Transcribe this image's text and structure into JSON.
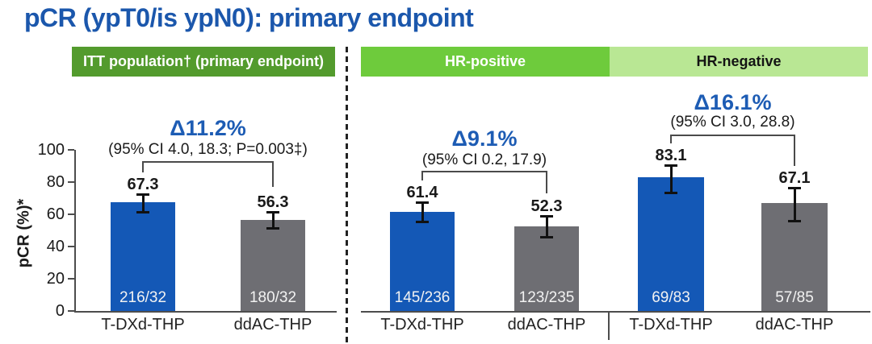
{
  "title": "pCR (ypT0/is ypN0): primary endpoint",
  "colors": {
    "title_blue": "#1b57ac",
    "delta_blue": "#1d5cb4",
    "bar_blue": "#1458b6",
    "bar_gray": "#6e6e73",
    "band_itt": "#539b2d",
    "band_hrpos": "#6ecb3c",
    "band_hrneg": "#b9e794",
    "axis": "#4d4d4d",
    "ink": "#1a1a1a"
  },
  "bands": [
    {
      "id": "itt",
      "label": "ITT population† (primary endpoint)"
    },
    {
      "id": "hr-positive",
      "label": "HR-positive"
    },
    {
      "id": "hr-negative",
      "label": "HR-negative"
    }
  ],
  "axis": {
    "ylabel": "pCR (%)*",
    "ticks": [
      0,
      20,
      40,
      60,
      80,
      100
    ],
    "ylim": [
      0,
      100
    ],
    "grid": false
  },
  "chart_data": [
    {
      "type": "bar",
      "group": "ITT population (primary endpoint)",
      "delta": "Δ11.2%",
      "ci": "(95% CI 4.0, 18.3; P=0.003‡)",
      "categories": [
        "T-DXd-THP",
        "ddAC-THP"
      ],
      "bars": [
        {
          "category": "T-DXd-THP",
          "value": 67.3,
          "value_label": "67.3",
          "n_label": "216/32",
          "ci_est": [
            61.1,
            72.3
          ],
          "color": "blue"
        },
        {
          "category": "ddAC-THP",
          "value": 56.3,
          "value_label": "56.3",
          "n_label": "180/32",
          "ci_est": [
            50.8,
            61.6
          ],
          "color": "gray"
        }
      ]
    },
    {
      "type": "bar",
      "group": "HR-positive",
      "delta": "Δ9.1%",
      "ci": "(95% CI 0.2, 17.9)",
      "categories": [
        "T-DXd-THP",
        "ddAC-THP"
      ],
      "bars": [
        {
          "category": "T-DXd-THP",
          "value": 61.4,
          "value_label": "61.4",
          "n_label": "145/236",
          "ci_est": [
            54.8,
            67.6
          ],
          "color": "blue"
        },
        {
          "category": "ddAC-THP",
          "value": 52.3,
          "value_label": "52.3",
          "n_label": "123/235",
          "ci_est": [
            45.7,
            58.8
          ],
          "color": "gray"
        }
      ]
    },
    {
      "type": "bar",
      "group": "HR-negative",
      "delta": "Δ16.1%",
      "ci": "(95% CI 3.0, 28.8)",
      "categories": [
        "T-DXd-THP",
        "ddAC-THP"
      ],
      "bars": [
        {
          "category": "T-DXd-THP",
          "value": 83.1,
          "value_label": "83.1",
          "n_label": "69/83",
          "ci_est": [
            73.2,
            90.6
          ],
          "color": "blue"
        },
        {
          "category": "ddAC-THP",
          "value": 67.1,
          "value_label": "67.1",
          "n_label": "57/85",
          "ci_est": [
            55.6,
            76.3
          ],
          "color": "gray"
        }
      ]
    }
  ]
}
